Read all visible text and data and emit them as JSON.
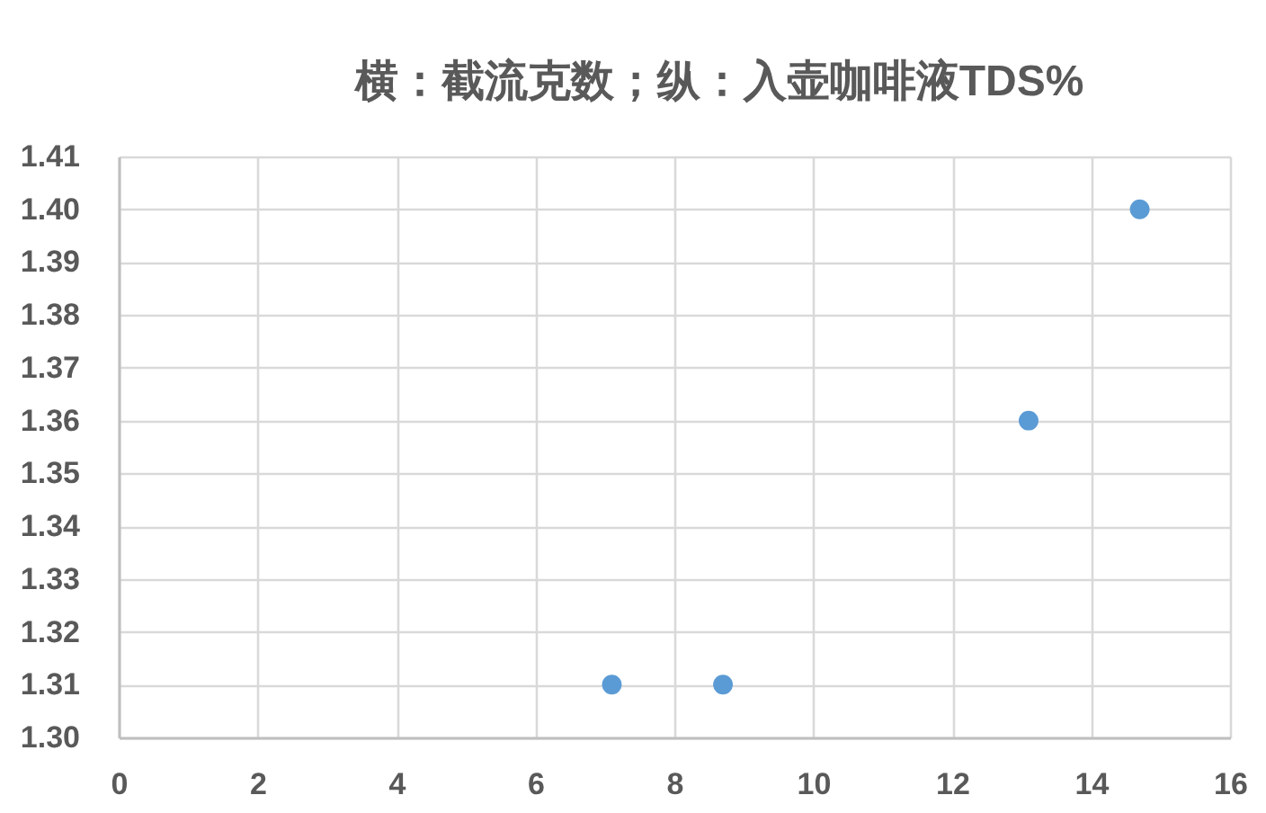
{
  "chart_data": {
    "type": "scatter",
    "title": "横：截流克数；纵：入壶咖啡液TDS%",
    "x": [
      7.1,
      8.7,
      13.1,
      14.7
    ],
    "values": [
      1.31,
      1.31,
      1.36,
      1.4
    ],
    "color": "#5b9bd5",
    "marker": "circle",
    "xlim": [
      0,
      16
    ],
    "xticks": [
      0,
      2,
      4,
      6,
      8,
      10,
      12,
      14,
      16
    ],
    "ylim": [
      1.3,
      1.41
    ],
    "yticks": [
      {
        "value": 1.3,
        "label": "1.30"
      },
      1.31,
      1.32,
      1.33,
      1.34,
      1.35,
      1.36,
      1.37,
      1.38,
      1.39,
      {
        "value": 1.4,
        "label": "1.40"
      },
      1.41
    ],
    "grid": true
  }
}
